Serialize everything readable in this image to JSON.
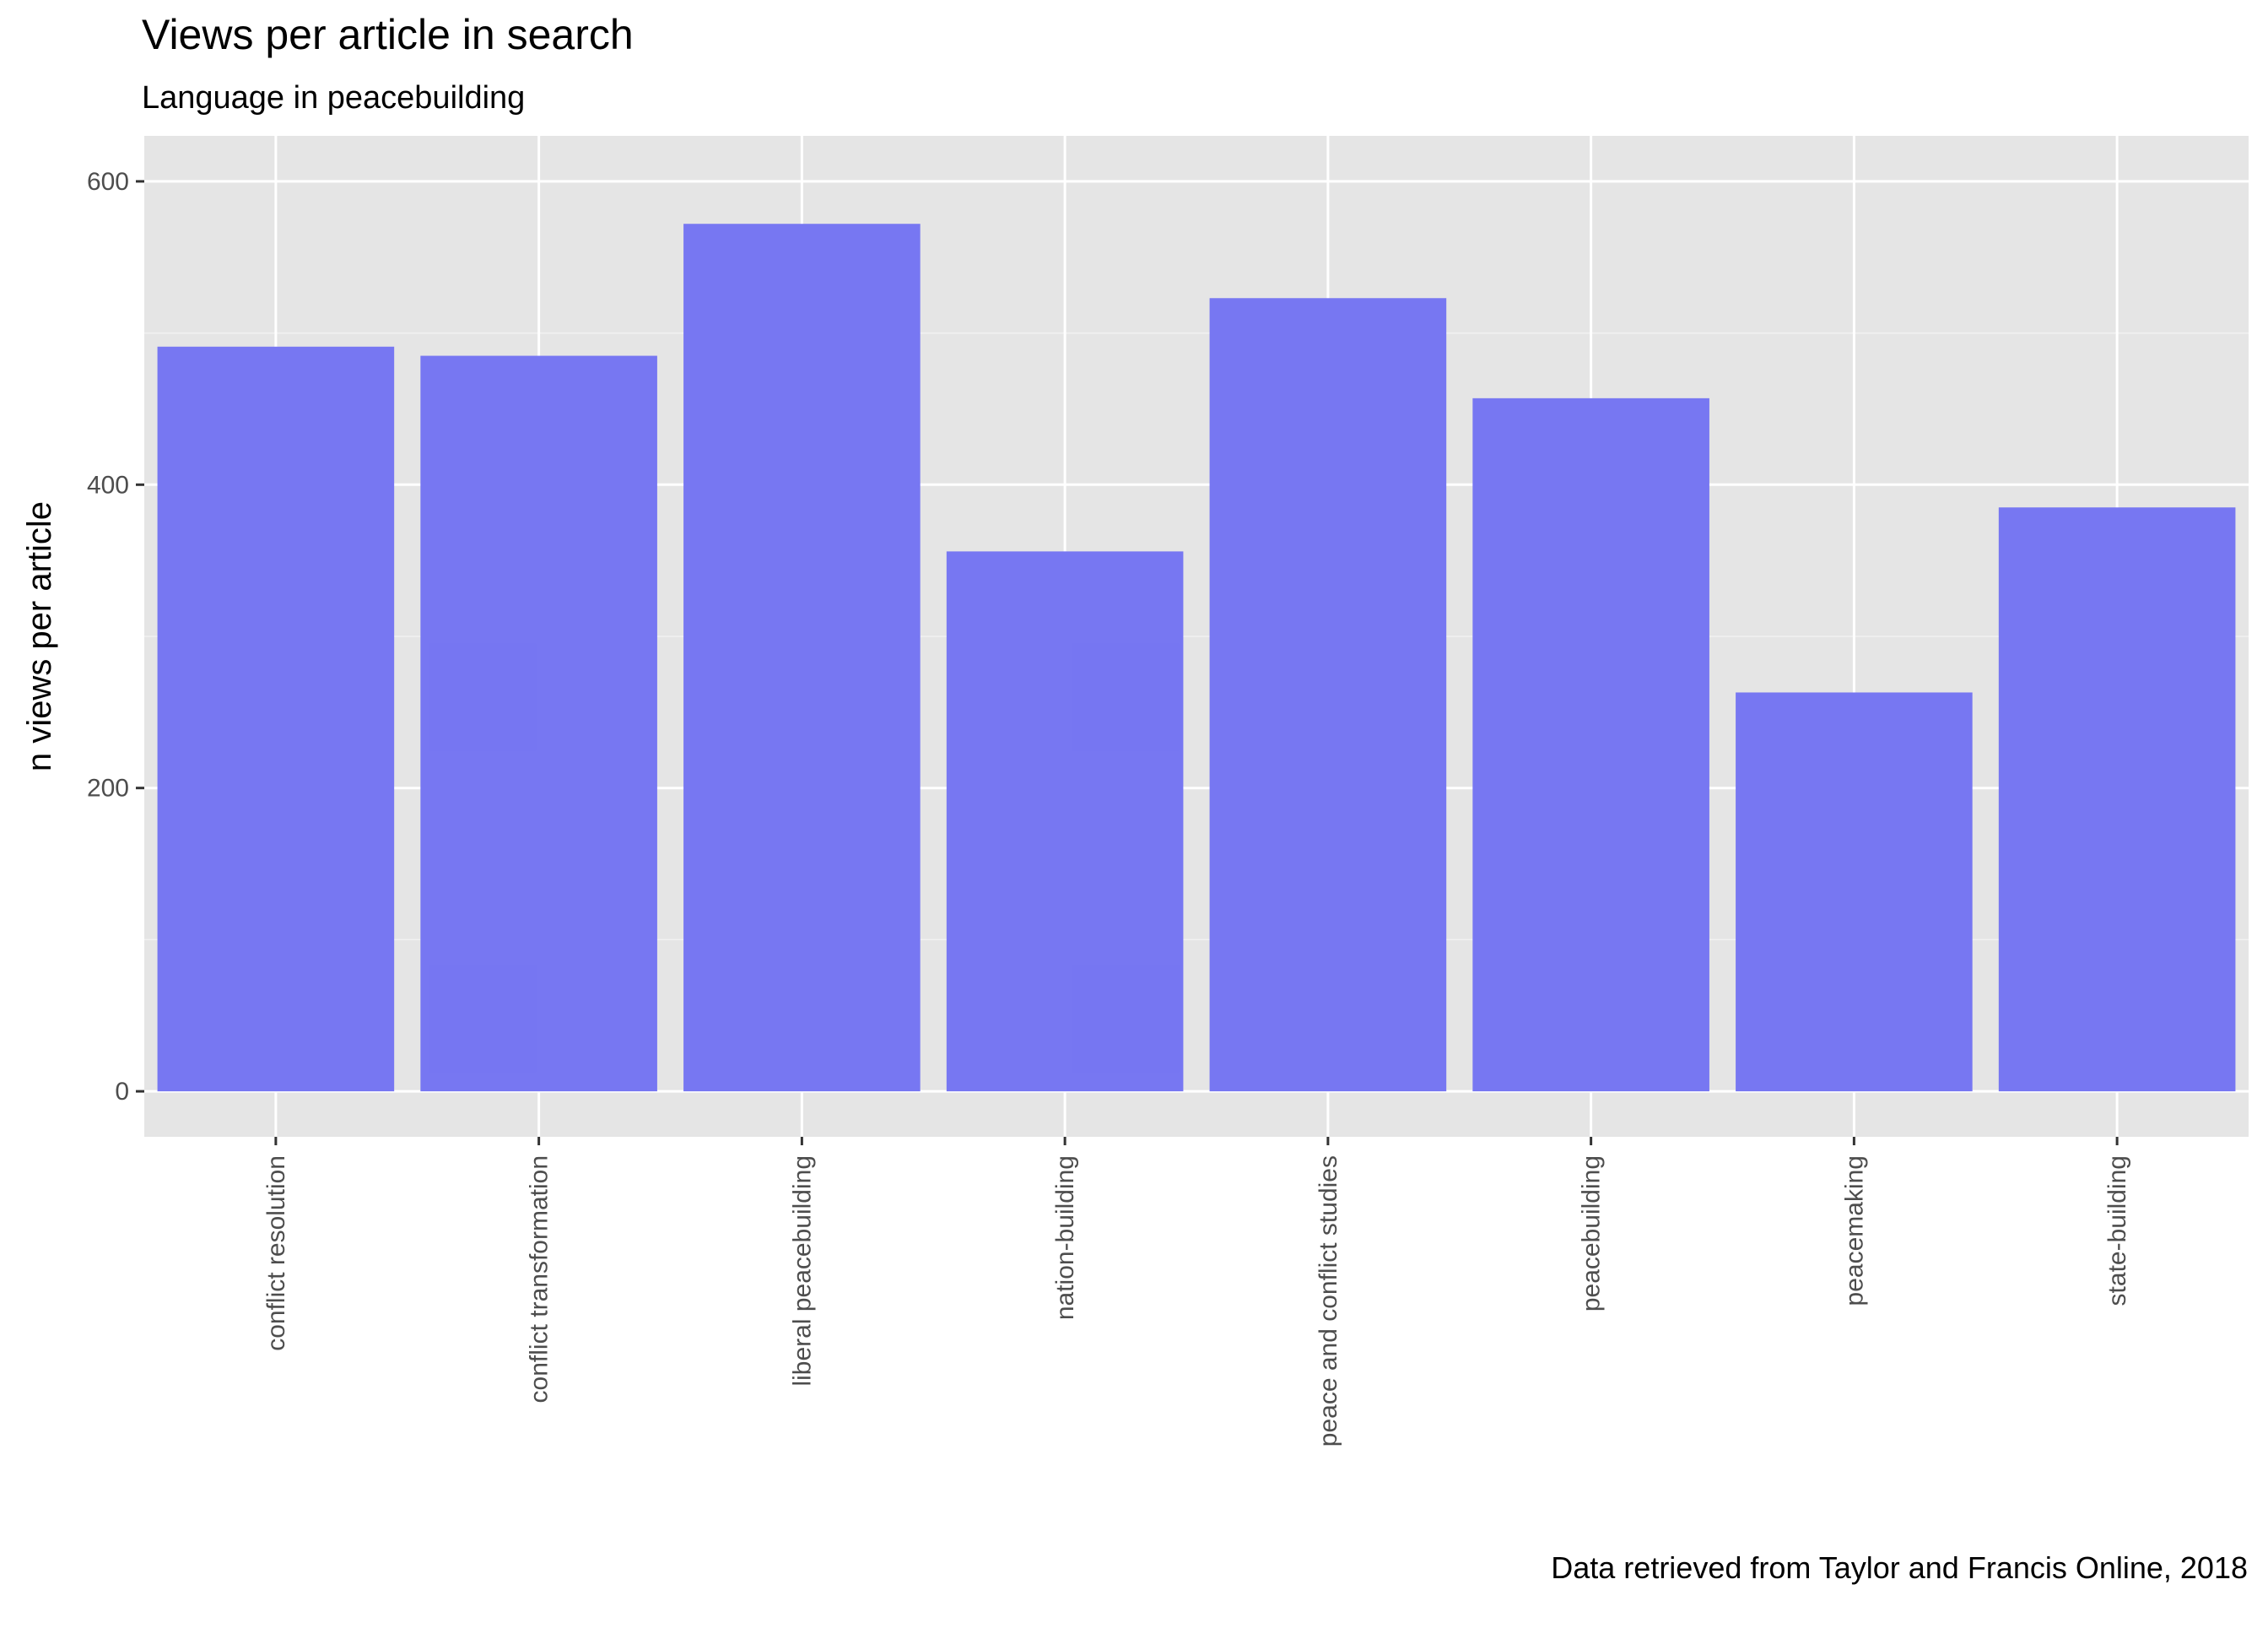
{
  "chart_data": {
    "type": "bar",
    "title": "Views per article in search",
    "subtitle": "Language in peacebuilding",
    "xlabel": "",
    "ylabel": "n views per article",
    "caption": "Data retrieved from Taylor and Francis Online, 2018",
    "categories": [
      "conflict resolution",
      "conflict transformation",
      "liberal peacebuilding",
      "nation-building",
      "peace and conflict studies",
      "peacebuilding",
      "peacemaking",
      "state-building"
    ],
    "values": [
      491,
      485,
      572,
      356,
      523,
      457,
      263,
      385
    ],
    "ylim": [
      -30,
      600
    ],
    "yticks": [
      0,
      200,
      400,
      600
    ],
    "grid": true,
    "legend": "none",
    "colors": {
      "bar": "#7474f2",
      "panel": "#e5e5e5",
      "grid_major": "#ffffff",
      "grid_minor": "#f2f2f2",
      "tick_text": "#4d4d4d",
      "tick": "#333333"
    }
  }
}
